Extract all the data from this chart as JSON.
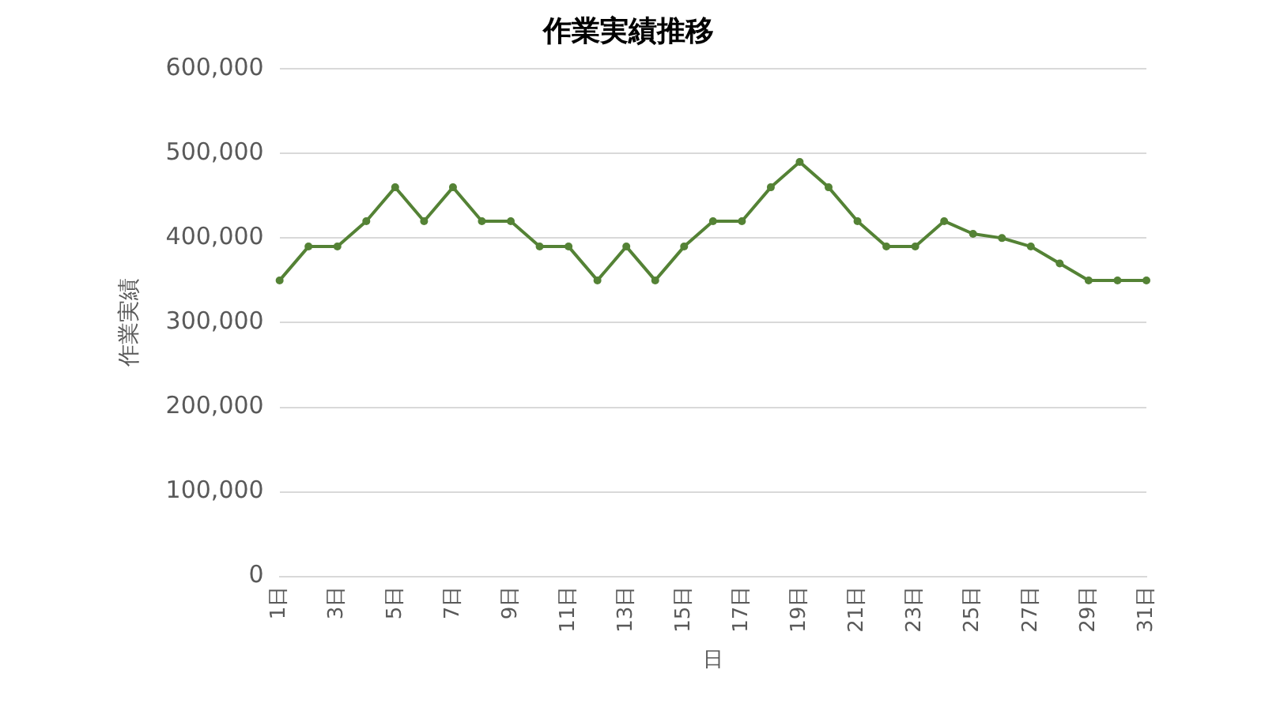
{
  "chart_data": {
    "type": "line",
    "title": "作業実績推移",
    "xlabel": "日",
    "ylabel": "作業実績",
    "categories": [
      "1日",
      null,
      "3日",
      null,
      "5日",
      null,
      "7日",
      null,
      "9日",
      null,
      "11日",
      null,
      "13日",
      null,
      "15日",
      null,
      "17日",
      null,
      "19日",
      null,
      "21日",
      null,
      "23日",
      null,
      "25日",
      null,
      "27日",
      null,
      "29日",
      null,
      "31日"
    ],
    "series": [
      {
        "color": "#548235",
        "values": [
          350000,
          390000,
          390000,
          420000,
          460000,
          420000,
          460000,
          420000,
          420000,
          390000,
          390000,
          350000,
          390000,
          350000,
          390000,
          420000,
          420000,
          460000,
          490000,
          460000,
          420000,
          390000,
          390000,
          420000,
          405000,
          400000,
          390000,
          370000,
          350000,
          350000,
          350000
        ]
      }
    ],
    "ylim": [
      0,
      600000
    ],
    "yticks": [
      {
        "value": 0,
        "label": "0"
      },
      {
        "value": 100000,
        "label": "100,000"
      },
      {
        "value": 200000,
        "label": "200,000"
      },
      {
        "value": 300000,
        "label": "300,000"
      },
      {
        "value": 400000,
        "label": "400,000"
      },
      {
        "value": 500000,
        "label": "500,000"
      },
      {
        "value": 600000,
        "label": "600,000"
      }
    ],
    "grid": "y",
    "legend": false,
    "marker": "circle",
    "line_style": "solid"
  }
}
